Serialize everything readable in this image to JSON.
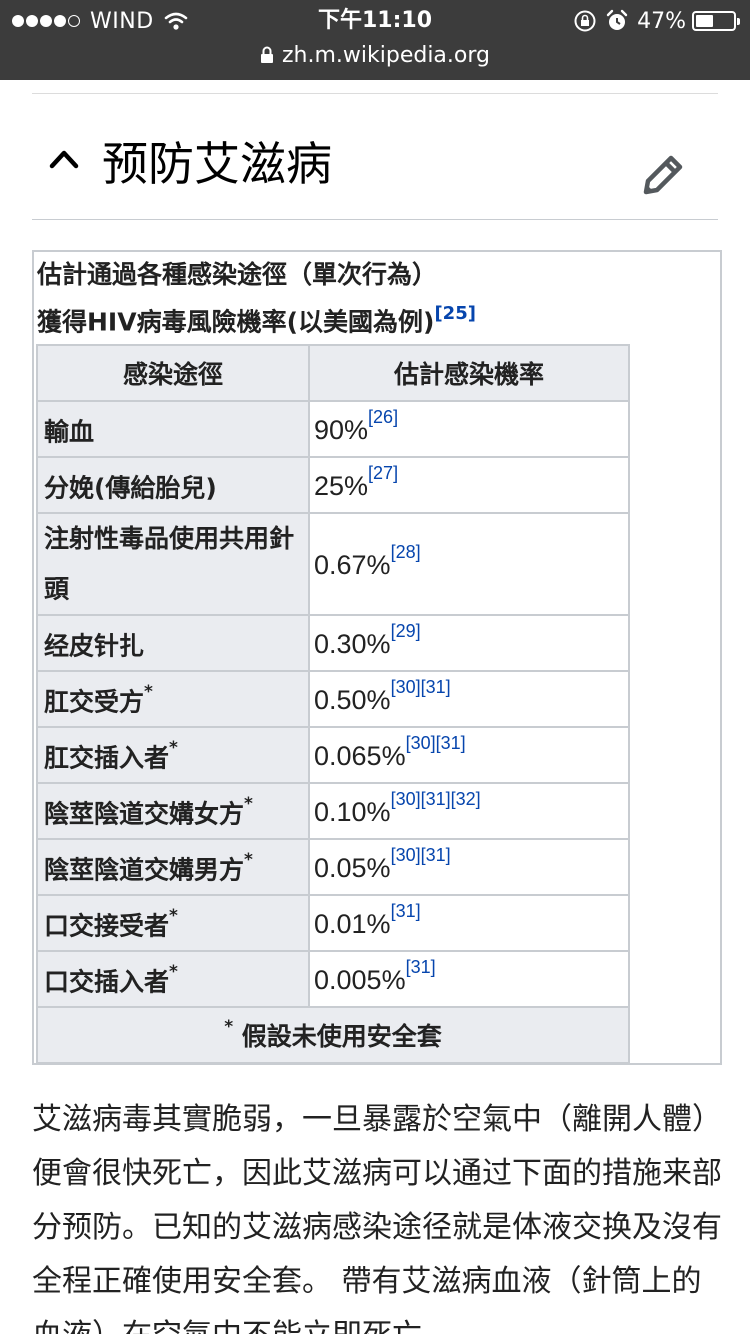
{
  "status_bar": {
    "carrier": "WIND",
    "time": "下午11:10",
    "battery_text": "47%",
    "battery_level": 0.47
  },
  "browser": {
    "url": "zh.m.wikipedia.org"
  },
  "section": {
    "title": "预防艾滋病"
  },
  "table": {
    "caption_line1": "估計通過各種感染途徑（單次行為）",
    "caption_line2": "獲得HIV病毒風險機率(以美國為例)",
    "caption_ref": "[25]",
    "headers": [
      "感染途徑",
      "估計感染機率"
    ],
    "rows": [
      {
        "route": "輸血",
        "star": "",
        "rate": "90%",
        "refs": "[26]"
      },
      {
        "route": "分娩(傳給胎兒)",
        "star": "",
        "rate": "25%",
        "refs": "[27]"
      },
      {
        "route": "注射性毒品使用共用針頭",
        "star": "",
        "rate": "0.67%",
        "refs": "[28]"
      },
      {
        "route": "经皮针扎",
        "star": "",
        "rate": "0.30%",
        "refs": "[29]"
      },
      {
        "route": "肛交受方",
        "star": "*",
        "rate": "0.50%",
        "refs": "[30][31]"
      },
      {
        "route": "肛交插入者",
        "star": "*",
        "rate": "0.065%",
        "refs": "[30][31]"
      },
      {
        "route": "陰莖陰道交媾女方",
        "star": "*",
        "rate": "0.10%",
        "refs": "[30][31][32]"
      },
      {
        "route": "陰莖陰道交媾男方",
        "star": "*",
        "rate": "0.05%",
        "refs": "[30][31]"
      },
      {
        "route": "口交接受者",
        "star": "*",
        "rate": "0.01%",
        "refs": "[31]"
      },
      {
        "route": "口交插入者",
        "star": "*",
        "rate": "0.005%",
        "refs": "[31]"
      }
    ],
    "footnote_star": "*",
    "footnote": "假設未使用安全套"
  },
  "paragraph": "艾滋病毒其實脆弱，一旦暴露於空氣中（離開人體）便會很快死亡，因此艾滋病可以通过下面的措施来部分预防。已知的艾滋病感染途径就是体液交换及沒有全程正確使用安全套。 帶有艾滋病血液（針筒上的血液）在空氣中不能立即死亡"
}
